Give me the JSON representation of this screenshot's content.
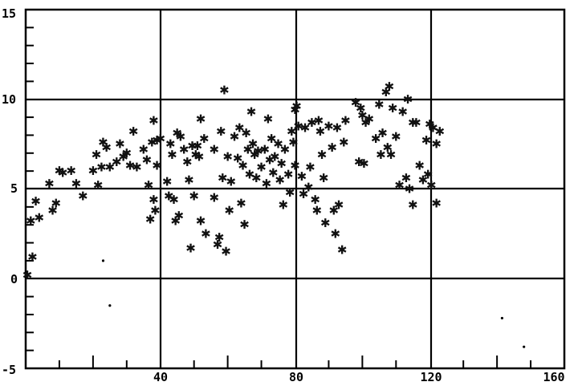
{
  "chart_data": {
    "type": "scatter",
    "title": "",
    "xlabel": "",
    "ylabel": "",
    "xlim": [
      0,
      160
    ],
    "ylim": [
      -5,
      15
    ],
    "grid": true,
    "x_ticks": [
      "40",
      "80",
      "120",
      "160"
    ],
    "y_ticks": [
      "-5",
      "0",
      "5",
      "10",
      "15"
    ],
    "marker": "✱",
    "series": [
      {
        "points": [
          [
            0.5,
            0.2
          ],
          [
            1.5,
            3.2
          ],
          [
            2,
            1.2
          ],
          [
            3,
            4.3
          ],
          [
            4,
            3.4
          ],
          [
            7,
            5.3
          ],
          [
            8,
            3.8
          ],
          [
            9,
            4.2
          ],
          [
            10,
            6
          ],
          [
            11,
            5.9
          ],
          [
            13.5,
            6
          ],
          [
            15,
            5.3
          ],
          [
            17,
            4.6
          ],
          [
            20,
            6
          ],
          [
            21,
            6.9
          ],
          [
            21.5,
            5.2
          ],
          [
            22.5,
            6.2
          ],
          [
            23,
            7.6
          ],
          [
            24,
            7.3
          ],
          [
            25,
            6.2
          ],
          [
            27,
            6.5
          ],
          [
            28,
            7.5
          ],
          [
            29,
            6.8
          ],
          [
            30,
            7
          ],
          [
            31,
            6.3
          ],
          [
            32,
            8.2
          ],
          [
            33,
            6.2
          ],
          [
            35,
            7.2
          ],
          [
            36,
            6.6
          ],
          [
            36.5,
            5.2
          ],
          [
            37,
            3.3
          ],
          [
            37.5,
            7.6
          ],
          [
            38,
            8.8
          ],
          [
            38,
            4.4
          ],
          [
            38.5,
            3.8
          ],
          [
            39,
            7.7
          ],
          [
            39,
            6.3
          ],
          [
            40,
            7.8
          ],
          [
            42,
            5.4
          ],
          [
            42.5,
            4.6
          ],
          [
            43,
            7.5
          ],
          [
            43.5,
            6.9
          ],
          [
            44,
            4.4
          ],
          [
            44.5,
            3.2
          ],
          [
            45,
            8.1
          ],
          [
            45.5,
            3.5
          ],
          [
            46,
            7.9
          ],
          [
            47,
            7.2
          ],
          [
            48,
            6.5
          ],
          [
            48.5,
            5.5
          ],
          [
            49,
            1.7
          ],
          [
            49.5,
            7.4
          ],
          [
            50,
            4.6
          ],
          [
            50.5,
            6.9
          ],
          [
            51,
            7.4
          ],
          [
            51.5,
            6.8
          ],
          [
            52,
            8.9
          ],
          [
            52,
            3.2
          ],
          [
            53,
            7.8
          ],
          [
            53.5,
            2.5
          ],
          [
            56,
            7.2
          ],
          [
            56,
            4.5
          ],
          [
            57,
            1.9
          ],
          [
            57.5,
            2.3
          ],
          [
            58,
            8.2
          ],
          [
            58.5,
            5.6
          ],
          [
            59,
            10.5
          ],
          [
            59.5,
            1.5
          ],
          [
            60,
            6.8
          ],
          [
            60.5,
            3.8
          ],
          [
            61,
            5.4
          ],
          [
            62,
            7.9
          ],
          [
            63,
            6.7
          ],
          [
            63.5,
            8.4
          ],
          [
            64,
            4.2
          ],
          [
            64.5,
            6.3
          ],
          [
            65,
            3
          ],
          [
            65.5,
            8.1
          ],
          [
            66,
            7.2
          ],
          [
            66.5,
            5.8
          ],
          [
            67,
            9.3
          ],
          [
            67.5,
            7.5
          ],
          [
            68,
            6.9
          ],
          [
            68.5,
            5.6
          ],
          [
            69,
            7.1
          ],
          [
            70,
            6.2
          ],
          [
            71,
            7.2
          ],
          [
            71.5,
            5.3
          ],
          [
            72,
            8.9
          ],
          [
            72.5,
            6.6
          ],
          [
            73,
            7.8
          ],
          [
            73.5,
            5.9
          ],
          [
            74,
            6.8
          ],
          [
            75,
            7.5
          ],
          [
            75.5,
            5.5
          ],
          [
            76,
            6.4
          ],
          [
            76.5,
            4.1
          ],
          [
            77,
            7.2
          ],
          [
            78,
            5.8
          ],
          [
            78.5,
            4.8
          ],
          [
            79,
            8.2
          ],
          [
            79.5,
            7.6
          ],
          [
            80,
            9.4
          ],
          [
            80,
            6.3
          ],
          [
            80.5,
            9.6
          ],
          [
            81,
            8.5
          ],
          [
            82,
            5.7
          ],
          [
            82.5,
            4.7
          ],
          [
            83,
            8.4
          ],
          [
            84,
            5.1
          ],
          [
            84.5,
            6.2
          ],
          [
            85,
            8.7
          ],
          [
            86,
            4.4
          ],
          [
            86.5,
            3.8
          ],
          [
            87,
            8.8
          ],
          [
            87.5,
            8.2
          ],
          [
            88,
            6.9
          ],
          [
            88.5,
            5.6
          ],
          [
            89,
            3.1
          ],
          [
            90,
            8.5
          ],
          [
            91,
            7.3
          ],
          [
            91.5,
            3.8
          ],
          [
            92,
            2.5
          ],
          [
            92.5,
            8.4
          ],
          [
            93,
            4.1
          ],
          [
            94,
            1.6
          ],
          [
            94.5,
            7.6
          ],
          [
            95,
            8.8
          ],
          [
            98,
            9.8
          ],
          [
            99,
            6.5
          ],
          [
            99.5,
            9.5
          ],
          [
            100,
            9.1
          ],
          [
            100.5,
            6.4
          ],
          [
            101,
            8.7
          ],
          [
            102,
            8.9
          ],
          [
            104,
            7.8
          ],
          [
            105,
            9.7
          ],
          [
            105.5,
            6.9
          ],
          [
            106,
            8.1
          ],
          [
            107,
            10.4
          ],
          [
            107.5,
            7.3
          ],
          [
            108,
            10.7
          ],
          [
            108.5,
            6.9
          ],
          [
            109,
            9.5
          ],
          [
            110,
            7.9
          ],
          [
            111,
            5.2
          ],
          [
            112,
            9.3
          ],
          [
            113,
            5.6
          ],
          [
            113.5,
            10
          ],
          [
            114,
            5
          ],
          [
            115,
            8.7
          ],
          [
            115,
            4.1
          ],
          [
            116,
            8.7
          ],
          [
            117,
            6.3
          ],
          [
            118,
            5.5
          ],
          [
            119,
            7.7
          ],
          [
            119.5,
            5.8
          ],
          [
            120,
            8.6
          ],
          [
            120.5,
            5.2
          ],
          [
            121,
            8.4
          ],
          [
            122,
            4.2
          ],
          [
            122,
            7.5
          ],
          [
            123,
            8.2
          ]
        ]
      }
    ],
    "stray_dots": [
      [
        23,
        1
      ],
      [
        25,
        -1.5
      ],
      [
        141.5,
        -2.2
      ],
      [
        148,
        -3.8
      ]
    ]
  }
}
